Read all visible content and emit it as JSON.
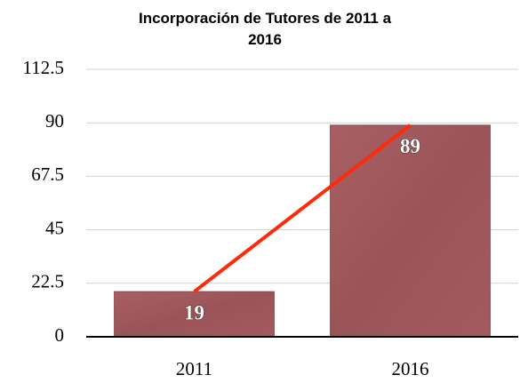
{
  "chart_data": {
    "type": "bar",
    "title": "Incorporación de Tutores de 2011 a 2016",
    "categories": [
      "2011",
      "2016"
    ],
    "values": [
      19,
      89
    ],
    "color": "#a0575b",
    "line_color": "#ff2a0a",
    "ylim": [
      0,
      112.5
    ],
    "yticks": [
      0,
      22.5,
      45,
      67.5,
      90,
      112.5
    ],
    "grid": true
  }
}
